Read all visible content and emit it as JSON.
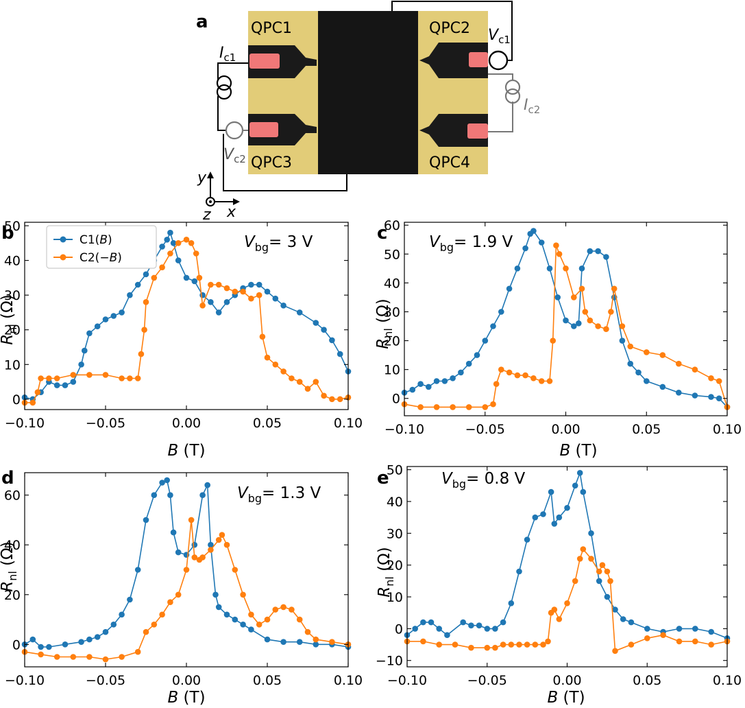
{
  "colors": {
    "c1": "#1f77b4",
    "c2": "#ff7f0e",
    "gold": "#e2cc78",
    "contact": "#f07878",
    "channel": "#151515"
  },
  "schematic": {
    "label": "a",
    "qpc1": "QPC1",
    "qpc2": "QPC2",
    "qpc3": "QPC3",
    "qpc4": "QPC4",
    "ic1": {
      "base": "I",
      "sub": "c1"
    },
    "ic2": {
      "base": "I",
      "sub": "c2"
    },
    "vc1": {
      "base": "V",
      "sub": "c1"
    },
    "vc2": {
      "base": "V",
      "sub": "c2"
    },
    "axis_y": "y",
    "axis_x": "x",
    "axis_z": "z"
  },
  "legend": {
    "c1": {
      "pre": "C1(",
      "var": "B",
      "post": ")"
    },
    "c2": {
      "pre": "C2(−",
      "var": "B",
      "post": ")"
    }
  },
  "axis_labels": {
    "x_var": "B",
    "x_unit": " (T)",
    "y_var": "R",
    "y_sub": "nl",
    "y_unit": " (Ω)"
  },
  "chart_data": [
    {
      "type": "line",
      "panel": "b",
      "annotation_value": "= 3 V",
      "ann_var": "V",
      "ann_sub": "bg",
      "xlim": [
        -0.1,
        0.1
      ],
      "ylim": [
        -3,
        51
      ],
      "xticks": [
        -0.1,
        -0.05,
        0,
        0.05,
        0.1
      ],
      "xtick_labels": [
        "−0.10",
        "−0.05",
        "0.00",
        "0.05",
        "0.10"
      ],
      "yticks": [
        0,
        10,
        20,
        30,
        40,
        50
      ],
      "ytick_labels": [
        "0",
        "10",
        "20",
        "30",
        "40",
        "50"
      ],
      "series": [
        {
          "name": "C1(B)",
          "color": "#1f77b4",
          "x": [
            -0.1,
            -0.095,
            -0.09,
            -0.085,
            -0.08,
            -0.075,
            -0.07,
            -0.065,
            -0.063,
            -0.06,
            -0.055,
            -0.05,
            -0.045,
            -0.04,
            -0.035,
            -0.03,
            -0.025,
            -0.02,
            -0.015,
            -0.012,
            -0.01,
            -0.008,
            -0.005,
            0,
            0.005,
            0.01,
            0.015,
            0.02,
            0.025,
            0.03,
            0.035,
            0.04,
            0.045,
            0.05,
            0.055,
            0.06,
            0.07,
            0.08,
            0.085,
            0.09,
            0.095,
            0.1
          ],
          "y": [
            0.5,
            0,
            2,
            5,
            4,
            4,
            5,
            10,
            14,
            19,
            21,
            23,
            24,
            25,
            30,
            33,
            36,
            40,
            44,
            46,
            48,
            45,
            40,
            35,
            34,
            30,
            28,
            25,
            28,
            30,
            32,
            33,
            33,
            31,
            29,
            27,
            25,
            22,
            20,
            17,
            13,
            8
          ]
        },
        {
          "name": "C2(−B)",
          "color": "#ff7f0e",
          "x": [
            -0.1,
            -0.095,
            -0.092,
            -0.09,
            -0.085,
            -0.08,
            -0.07,
            -0.06,
            -0.05,
            -0.04,
            -0.035,
            -0.03,
            -0.028,
            -0.026,
            -0.025,
            -0.02,
            -0.015,
            -0.01,
            -0.005,
            0,
            0.003,
            0.006,
            0.008,
            0.01,
            0.015,
            0.02,
            0.025,
            0.03,
            0.035,
            0.04,
            0.045,
            0.047,
            0.05,
            0.055,
            0.06,
            0.065,
            0.07,
            0.075,
            0.08,
            0.085,
            0.09,
            0.095,
            0.1
          ],
          "y": [
            -1,
            -1,
            2,
            6,
            6,
            6,
            7,
            7,
            7,
            6,
            6,
            6,
            13,
            20,
            28,
            35,
            38,
            42,
            45,
            46,
            45,
            42,
            35,
            27,
            33,
            33,
            32,
            31,
            31,
            29,
            30,
            18,
            12,
            10,
            8,
            6,
            5,
            3,
            5,
            1,
            0,
            0,
            0.5
          ]
        }
      ]
    },
    {
      "type": "line",
      "panel": "c",
      "annotation_value": "= 1.9 V",
      "ann_var": "V",
      "ann_sub": "bg",
      "xlim": [
        -0.1,
        0.1
      ],
      "ylim": [
        -6,
        61
      ],
      "xticks": [
        -0.1,
        -0.05,
        0,
        0.05,
        0.1
      ],
      "xtick_labels": [
        "−0.10",
        "−0.05",
        "0.00",
        "0.05",
        "0.10"
      ],
      "yticks": [
        0,
        10,
        20,
        30,
        40,
        50,
        60
      ],
      "ytick_labels": [
        "0",
        "10",
        "20",
        "30",
        "40",
        "50",
        "60"
      ],
      "series": [
        {
          "name": "C1(B)",
          "color": "#1f77b4",
          "x": [
            -0.1,
            -0.095,
            -0.09,
            -0.085,
            -0.08,
            -0.075,
            -0.07,
            -0.065,
            -0.06,
            -0.055,
            -0.05,
            -0.045,
            -0.04,
            -0.035,
            -0.03,
            -0.025,
            -0.022,
            -0.02,
            -0.015,
            -0.01,
            -0.005,
            0,
            0.005,
            0.008,
            0.01,
            0.015,
            0.02,
            0.025,
            0.03,
            0.035,
            0.04,
            0.045,
            0.05,
            0.06,
            0.07,
            0.08,
            0.09,
            0.095,
            0.1
          ],
          "y": [
            2,
            3,
            5,
            4,
            6,
            6,
            7,
            9,
            12,
            15,
            20,
            25,
            30,
            38,
            45,
            52,
            57,
            58,
            54,
            45,
            35,
            27,
            25,
            26,
            45,
            51,
            51,
            49,
            35,
            20,
            12,
            9,
            6,
            4,
            2,
            1,
            0.5,
            0,
            -3
          ]
        },
        {
          "name": "C2(−B)",
          "color": "#ff7f0e",
          "x": [
            -0.1,
            -0.09,
            -0.08,
            -0.07,
            -0.06,
            -0.05,
            -0.045,
            -0.043,
            -0.04,
            -0.035,
            -0.03,
            -0.025,
            -0.02,
            -0.015,
            -0.01,
            -0.008,
            -0.006,
            -0.004,
            0,
            0.005,
            0.01,
            0.012,
            0.015,
            0.02,
            0.025,
            0.028,
            0.03,
            0.035,
            0.04,
            0.05,
            0.06,
            0.07,
            0.08,
            0.09,
            0.095,
            0.1
          ],
          "y": [
            -2,
            -3,
            -3,
            -3,
            -3,
            -3,
            -2,
            5,
            10,
            9,
            8,
            8,
            7,
            6,
            6,
            20,
            53,
            50,
            45,
            35,
            38,
            30,
            27,
            25,
            24,
            30,
            38,
            25,
            18,
            16,
            15,
            12,
            10,
            7,
            6,
            -3
          ]
        }
      ]
    },
    {
      "type": "line",
      "panel": "d",
      "annotation_value": "= 1.3 V",
      "ann_var": "V",
      "ann_sub": "bg",
      "xlim": [
        -0.1,
        0.1
      ],
      "ylim": [
        -9,
        69
      ],
      "xticks": [
        -0.1,
        -0.05,
        0,
        0.05,
        0.1
      ],
      "xtick_labels": [
        "−0.10",
        "−0.05",
        "0.00",
        "0.05",
        "0.10"
      ],
      "yticks": [
        0,
        20,
        40,
        60
      ],
      "ytick_labels": [
        "0",
        "20",
        "40",
        "60"
      ],
      "series": [
        {
          "name": "C1(B)",
          "color": "#1f77b4",
          "x": [
            -0.1,
            -0.095,
            -0.09,
            -0.085,
            -0.075,
            -0.065,
            -0.06,
            -0.055,
            -0.05,
            -0.045,
            -0.04,
            -0.035,
            -0.03,
            -0.025,
            -0.02,
            -0.015,
            -0.012,
            -0.01,
            -0.008,
            -0.005,
            0,
            0.005,
            0.01,
            0.013,
            0.015,
            0.018,
            0.02,
            0.025,
            0.03,
            0.035,
            0.04,
            0.05,
            0.06,
            0.07,
            0.08,
            0.09,
            0.1
          ],
          "y": [
            0,
            2,
            -1,
            -1,
            0,
            1,
            2,
            3,
            5,
            8,
            12,
            18,
            30,
            50,
            60,
            65,
            66,
            60,
            45,
            37,
            36,
            40,
            60,
            64,
            40,
            20,
            15,
            12,
            10,
            8,
            6,
            2,
            1,
            1,
            0,
            0,
            -1
          ]
        },
        {
          "name": "C2(−B)",
          "color": "#ff7f0e",
          "x": [
            -0.1,
            -0.09,
            -0.08,
            -0.07,
            -0.06,
            -0.05,
            -0.04,
            -0.03,
            -0.025,
            -0.02,
            -0.015,
            -0.01,
            -0.005,
            0,
            0.003,
            0.005,
            0.008,
            0.01,
            0.015,
            0.02,
            0.022,
            0.025,
            0.03,
            0.035,
            0.04,
            0.045,
            0.05,
            0.055,
            0.06,
            0.065,
            0.07,
            0.075,
            0.08,
            0.09,
            0.1
          ],
          "y": [
            -3,
            -4,
            -5,
            -5,
            -5,
            -6,
            -5,
            -3,
            5,
            8,
            12,
            17,
            20,
            30,
            50,
            35,
            34,
            35,
            38,
            42,
            44,
            40,
            30,
            20,
            12,
            8,
            10,
            14,
            15,
            14,
            10,
            5,
            2,
            1,
            0
          ]
        }
      ]
    },
    {
      "type": "line",
      "panel": "e",
      "annotation_value": "= 0.8 V",
      "ann_var": "V",
      "ann_sub": "bg",
      "xlim": [
        -0.1,
        0.1
      ],
      "ylim": [
        -12,
        51
      ],
      "xticks": [
        -0.1,
        -0.05,
        0,
        0.05,
        0.1
      ],
      "xtick_labels": [
        "−0.10",
        "−0.05",
        "0.00",
        "0.05",
        "0.10"
      ],
      "yticks": [
        -10,
        0,
        10,
        20,
        30,
        40,
        50
      ],
      "ytick_labels": [
        "−10",
        "0",
        "10",
        "20",
        "30",
        "40",
        "50"
      ],
      "series": [
        {
          "name": "C1(B)",
          "color": "#1f77b4",
          "x": [
            -0.1,
            -0.095,
            -0.09,
            -0.085,
            -0.08,
            -0.075,
            -0.065,
            -0.06,
            -0.055,
            -0.05,
            -0.045,
            -0.04,
            -0.035,
            -0.03,
            -0.025,
            -0.02,
            -0.015,
            -0.01,
            -0.008,
            -0.005,
            0,
            0.005,
            0.008,
            0.01,
            0.015,
            0.02,
            0.025,
            0.03,
            0.035,
            0.04,
            0.05,
            0.06,
            0.07,
            0.08,
            0.09,
            0.1
          ],
          "y": [
            -2,
            0,
            2,
            2,
            0,
            -2,
            2,
            1,
            1,
            0,
            0,
            2,
            8,
            18,
            28,
            35,
            36,
            43,
            33,
            35,
            38,
            45,
            49,
            43,
            30,
            15,
            10,
            6,
            3,
            2,
            0,
            -1,
            0,
            0,
            -1,
            -3
          ]
        },
        {
          "name": "C2(−B)",
          "color": "#ff7f0e",
          "x": [
            -0.1,
            -0.09,
            -0.08,
            -0.07,
            -0.06,
            -0.05,
            -0.045,
            -0.04,
            -0.035,
            -0.03,
            -0.025,
            -0.02,
            -0.015,
            -0.012,
            -0.01,
            -0.008,
            -0.005,
            0,
            0.005,
            0.008,
            0.01,
            0.015,
            0.02,
            0.022,
            0.025,
            0.027,
            0.03,
            0.04,
            0.05,
            0.06,
            0.07,
            0.08,
            0.09,
            0.1
          ],
          "y": [
            -4,
            -4,
            -5,
            -5,
            -6,
            -6,
            -6,
            -5,
            -5,
            -5,
            -5,
            -5,
            -5,
            -4,
            5,
            6,
            3,
            8,
            15,
            22,
            25,
            22,
            18,
            20,
            18,
            15,
            -7,
            -5,
            -3,
            -2,
            -4,
            -4,
            -5,
            -4
          ]
        }
      ]
    }
  ]
}
